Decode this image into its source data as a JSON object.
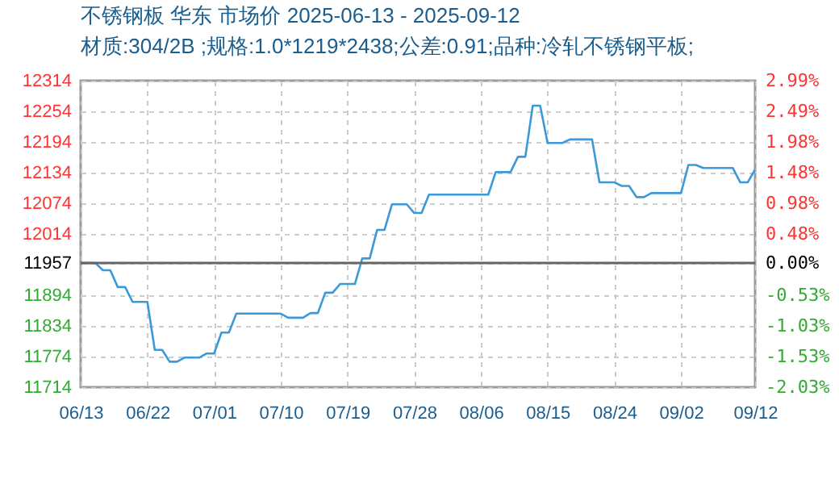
{
  "chart_data": {
    "type": "line",
    "title": "不锈钢板 华东 市场价 2025-06-13 - 2025-09-12",
    "subtitle": "材质:304/2B ;规格:1.0*1219*2438;公差:0.91;品种:冷轧不锈钢平板;",
    "x": [
      "2025-06-13",
      "2025-06-15",
      "2025-06-16",
      "2025-06-17",
      "2025-06-18",
      "2025-06-19",
      "2025-06-20",
      "2025-06-22",
      "2025-06-23",
      "2025-06-24",
      "2025-06-25",
      "2025-06-26",
      "2025-06-27",
      "2025-06-29",
      "2025-06-30",
      "2025-07-01",
      "2025-07-02",
      "2025-07-03",
      "2025-07-04",
      "2025-07-10",
      "2025-07-11",
      "2025-07-13",
      "2025-07-14",
      "2025-07-15",
      "2025-07-16",
      "2025-07-17",
      "2025-07-18",
      "2025-07-20",
      "2025-07-21",
      "2025-07-22",
      "2025-07-23",
      "2025-07-24",
      "2025-07-25",
      "2025-07-27",
      "2025-07-28",
      "2025-07-29",
      "2025-07-30",
      "2025-08-07",
      "2025-08-08",
      "2025-08-10",
      "2025-08-11",
      "2025-08-12",
      "2025-08-13",
      "2025-08-14",
      "2025-08-15",
      "2025-08-17",
      "2025-08-18",
      "2025-08-21",
      "2025-08-22",
      "2025-08-24",
      "2025-08-25",
      "2025-08-26",
      "2025-08-27",
      "2025-08-28",
      "2025-08-29",
      "2025-09-02",
      "2025-09-03",
      "2025-09-04",
      "2025-09-05",
      "2025-09-09",
      "2025-09-10",
      "2025-09-11",
      "2025-09-12"
    ],
    "series": [
      {
        "color": "#3a9ad9",
        "values": [
          11957,
          11957,
          11943,
          11943,
          11910,
          11910,
          11881,
          11881,
          11787,
          11787,
          11764,
          11764,
          11772,
          11772,
          11780,
          11780,
          11821,
          11821,
          11858,
          11858,
          11850,
          11850,
          11859,
          11859,
          11899,
          11899,
          11916,
          11916,
          11966,
          11966,
          12022,
          12022,
          12072,
          12072,
          12055,
          12055,
          12091,
          12091,
          12135,
          12135,
          12165,
          12165,
          12265,
          12265,
          12192,
          12192,
          12199,
          12199,
          12115,
          12115,
          12108,
          12108,
          12086,
          12086,
          12094,
          12094,
          12149,
          12149,
          12143,
          12143,
          12115,
          12115,
          12140
        ]
      }
    ],
    "xlim": [
      "2025-06-13",
      "2025-09-12"
    ],
    "xticks": [
      {
        "value": "2025-06-13",
        "label": "06/13"
      },
      {
        "value": "2025-06-22",
        "label": "06/22"
      },
      {
        "value": "2025-07-01",
        "label": "07/01"
      },
      {
        "value": "2025-07-10",
        "label": "07/10"
      },
      {
        "value": "2025-07-19",
        "label": "07/19"
      },
      {
        "value": "2025-07-28",
        "label": "07/28"
      },
      {
        "value": "2025-08-06",
        "label": "08/06"
      },
      {
        "value": "2025-08-15",
        "label": "08/15"
      },
      {
        "value": "2025-08-24",
        "label": "08/24"
      },
      {
        "value": "2025-09-02",
        "label": "09/02"
      },
      {
        "value": "2025-09-12",
        "label": "09/12"
      }
    ],
    "ylim": [
      11714,
      12314
    ],
    "yticks": [
      11714,
      11774,
      11834,
      11894,
      11957,
      12014,
      12074,
      12134,
      12194,
      12254,
      12314
    ],
    "y2lim": [
      -2.03,
      2.99
    ],
    "y2ticks": [
      {
        "value": -2.03,
        "label": "-2.03%"
      },
      {
        "value": -1.53,
        "label": "-1.53%"
      },
      {
        "value": -1.03,
        "label": "-1.03%"
      },
      {
        "value": -0.53,
        "label": "-0.53%"
      },
      {
        "value": 0,
        "label": "0.00%"
      },
      {
        "value": 0.48,
        "label": "0.48%"
      },
      {
        "value": 0.98,
        "label": "0.98%"
      },
      {
        "value": 1.48,
        "label": "1.48%"
      },
      {
        "value": 1.98,
        "label": "1.98%"
      },
      {
        "value": 2.49,
        "label": "2.49%"
      },
      {
        "value": 2.99,
        "label": "2.99%"
      }
    ],
    "ref_lines": [
      {
        "axis": "y",
        "value": 11957,
        "color": "#666666"
      }
    ],
    "grid": true
  }
}
